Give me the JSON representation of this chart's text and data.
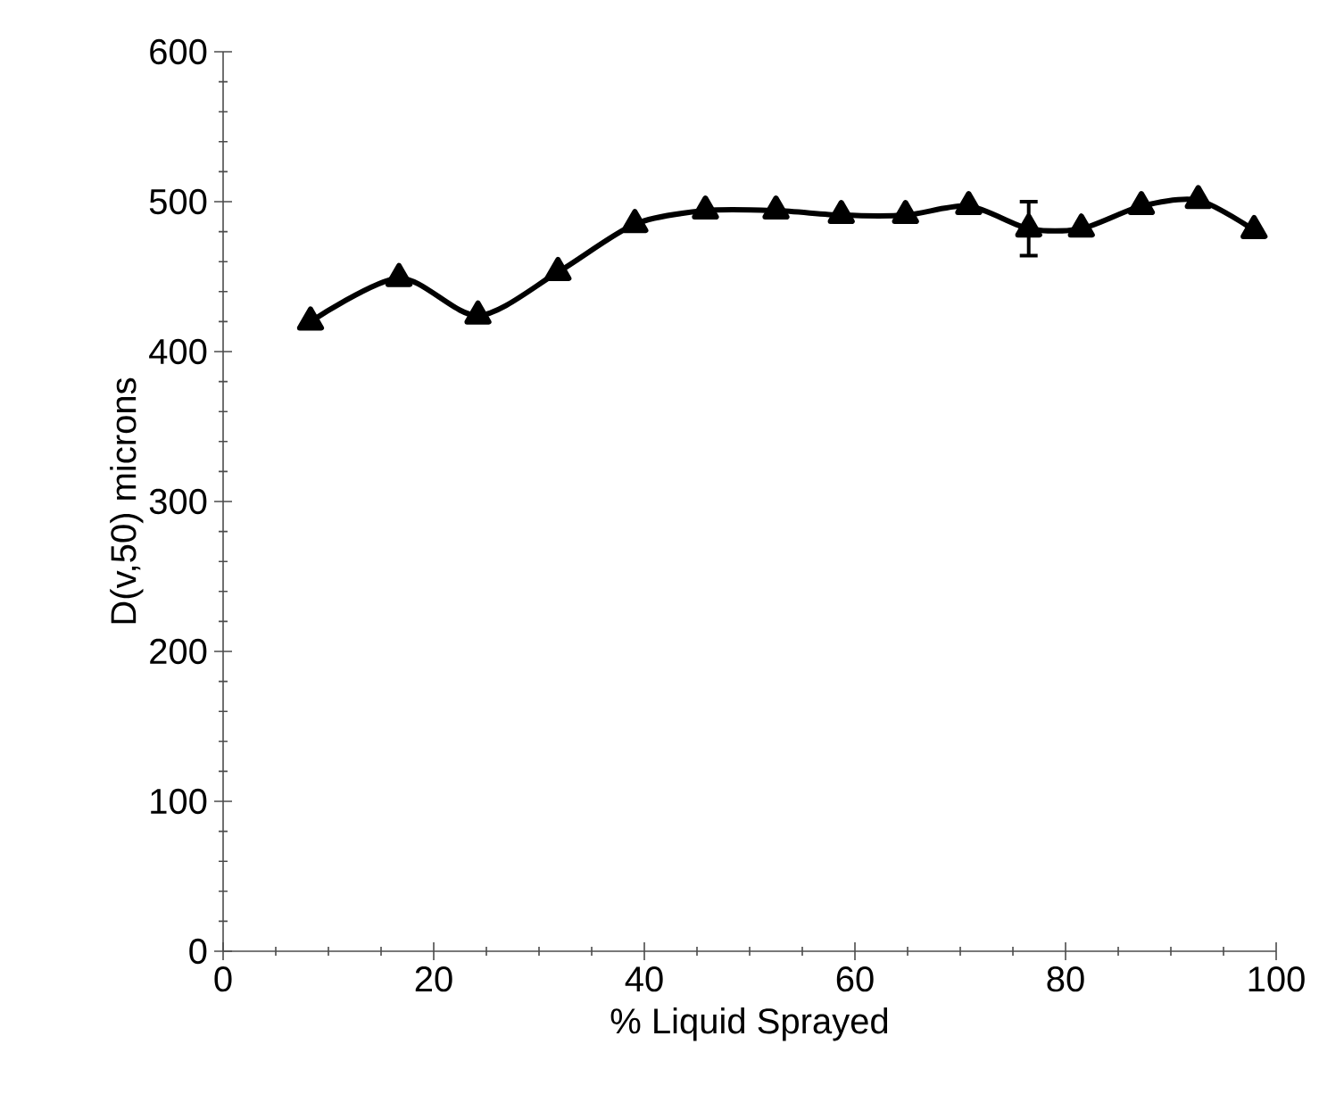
{
  "chart_data": {
    "type": "line",
    "xlabel": "% Liquid Sprayed",
    "ylabel": "D(v,50) microns",
    "x": [
      8.3,
      16.7,
      24.2,
      31.8,
      39.1,
      45.8,
      52.5,
      58.7,
      64.8,
      70.8,
      76.5,
      81.5,
      87.2,
      92.6,
      97.9
    ],
    "series": [
      {
        "color": "#000000",
        "values": [
          420,
          449,
          424,
          453,
          485,
          494,
          494,
          491,
          491,
          497,
          482,
          482,
          497,
          501,
          481
        ],
        "errors": [
          null,
          null,
          null,
          null,
          null,
          null,
          null,
          null,
          null,
          null,
          18,
          null,
          null,
          null,
          null
        ]
      }
    ],
    "xlim": [
      0,
      100
    ],
    "ylim": [
      0,
      600
    ],
    "xticks": [
      0,
      20,
      40,
      60,
      80,
      100
    ],
    "yticks": [
      0,
      100,
      200,
      300,
      400,
      500,
      600
    ],
    "marker": "triangle",
    "line_style": "solid"
  }
}
